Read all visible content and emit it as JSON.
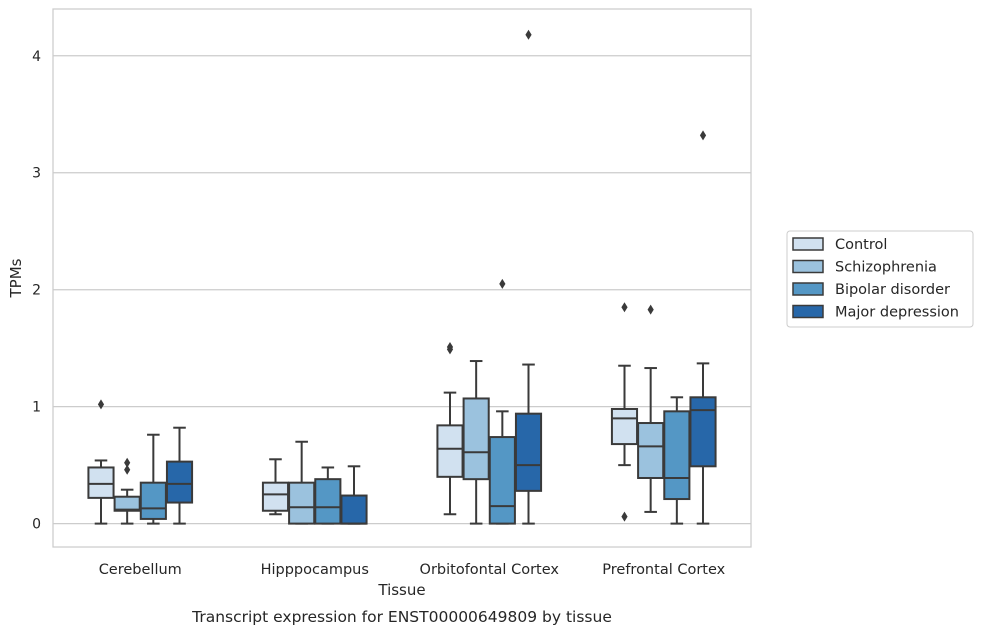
{
  "chart_data": {
    "type": "box",
    "caption": "Transcript expression for ENST00000649809 by tissue",
    "xlabel": "Tissue",
    "ylabel": "TPMs",
    "ylim": [
      -0.2,
      4.4
    ],
    "yticks": [
      0,
      1,
      2,
      3,
      4
    ],
    "grid": "horizontal",
    "legend_position": "right",
    "categories": [
      "Cerebellum",
      "Hipppocampus",
      "Orbitofontal Cortex",
      "Prefrontal Cortex"
    ],
    "series": [
      {
        "name": "Control",
        "color": "#d1e1f0",
        "boxes": [
          {
            "whislo": 0.0,
            "q1": 0.22,
            "med": 0.34,
            "q3": 0.48,
            "whishi": 0.54,
            "fliers": [
              1.02
            ]
          },
          {
            "whislo": 0.08,
            "q1": 0.11,
            "med": 0.25,
            "q3": 0.35,
            "whishi": 0.55,
            "fliers": []
          },
          {
            "whislo": 0.08,
            "q1": 0.4,
            "med": 0.64,
            "q3": 0.84,
            "whishi": 1.12,
            "fliers": [
              1.49,
              1.51
            ]
          },
          {
            "whislo": 0.5,
            "q1": 0.68,
            "med": 0.9,
            "q3": 0.98,
            "whishi": 1.35,
            "fliers": [
              1.85,
              0.06
            ]
          }
        ]
      },
      {
        "name": "Schizophrenia",
        "color": "#9bc2de",
        "boxes": [
          {
            "whislo": 0.0,
            "q1": 0.11,
            "med": 0.12,
            "q3": 0.23,
            "whishi": 0.29,
            "fliers": [
              0.46,
              0.52
            ]
          },
          {
            "whislo": 0.0,
            "q1": 0.0,
            "med": 0.14,
            "q3": 0.35,
            "whishi": 0.7,
            "fliers": []
          },
          {
            "whislo": 0.0,
            "q1": 0.38,
            "med": 0.61,
            "q3": 1.07,
            "whishi": 1.39,
            "fliers": []
          },
          {
            "whislo": 0.1,
            "q1": 0.39,
            "med": 0.66,
            "q3": 0.86,
            "whishi": 1.33,
            "fliers": [
              1.83
            ]
          }
        ]
      },
      {
        "name": "Bipolar disorder",
        "color": "#5497c5",
        "boxes": [
          {
            "whislo": 0.0,
            "q1": 0.04,
            "med": 0.13,
            "q3": 0.35,
            "whishi": 0.76,
            "fliers": []
          },
          {
            "whislo": 0.0,
            "q1": 0.0,
            "med": 0.14,
            "q3": 0.38,
            "whishi": 0.48,
            "fliers": []
          },
          {
            "whislo": 0.0,
            "q1": 0.0,
            "med": 0.15,
            "q3": 0.74,
            "whishi": 0.96,
            "fliers": [
              2.05
            ]
          },
          {
            "whislo": 0.0,
            "q1": 0.21,
            "med": 0.39,
            "q3": 0.96,
            "whishi": 1.08,
            "fliers": []
          }
        ]
      },
      {
        "name": "Major depression",
        "color": "#2767a9",
        "boxes": [
          {
            "whislo": 0.0,
            "q1": 0.18,
            "med": 0.34,
            "q3": 0.53,
            "whishi": 0.82,
            "fliers": []
          },
          {
            "whislo": 0.0,
            "q1": 0.0,
            "med": 0.0,
            "q3": 0.24,
            "whishi": 0.49,
            "fliers": []
          },
          {
            "whislo": 0.0,
            "q1": 0.28,
            "med": 0.5,
            "q3": 0.94,
            "whishi": 1.36,
            "fliers": [
              4.18
            ]
          },
          {
            "whislo": 0.0,
            "q1": 0.49,
            "med": 0.97,
            "q3": 1.08,
            "whishi": 1.37,
            "fliers": [
              3.32
            ]
          }
        ]
      }
    ]
  }
}
